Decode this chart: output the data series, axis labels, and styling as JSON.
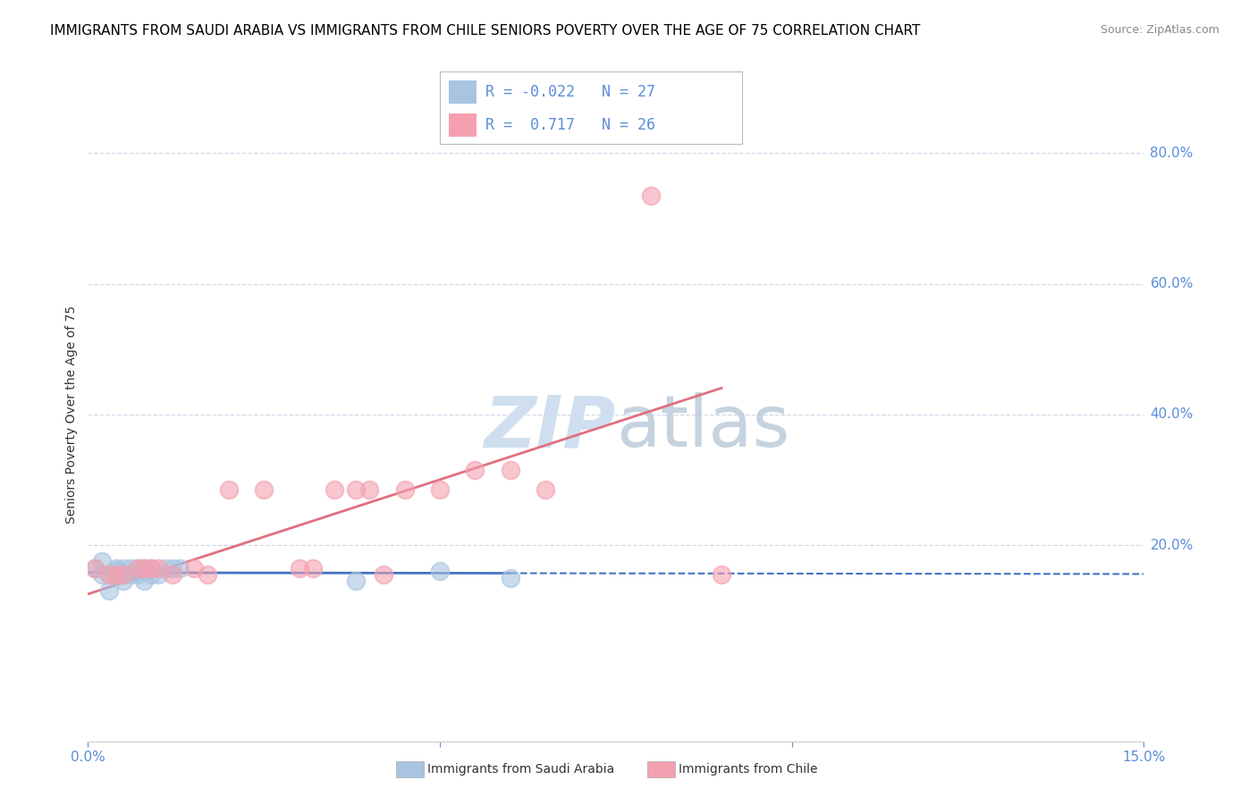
{
  "title": "IMMIGRANTS FROM SAUDI ARABIA VS IMMIGRANTS FROM CHILE SENIORS POVERTY OVER THE AGE OF 75 CORRELATION CHART",
  "source": "Source: ZipAtlas.com",
  "ylabel": "Seniors Poverty Over the Age of 75",
  "xlim": [
    0.0,
    0.15
  ],
  "ylim": [
    -0.1,
    0.9
  ],
  "xticks": [
    0.0,
    0.05,
    0.1,
    0.15
  ],
  "xticklabels": [
    "0.0%",
    "",
    "",
    "15.0%"
  ],
  "ytick_positions": [
    0.2,
    0.4,
    0.6,
    0.8
  ],
  "ytick_labels": [
    "20.0%",
    "40.0%",
    "60.0%",
    "80.0%"
  ],
  "saudi_R": -0.022,
  "saudi_N": 27,
  "chile_R": 0.717,
  "chile_N": 26,
  "saudi_color": "#a8c4e0",
  "chile_color": "#f4a0b0",
  "saudi_line_color": "#4472c4",
  "chile_line_color": "#e07080",
  "watermark_color": "#d0dff0",
  "legend_label_saudi": "Immigrants from Saudi Arabia",
  "legend_label_chile": "Immigrants from Chile",
  "saudi_x": [
    0.001,
    0.002,
    0.002,
    0.003,
    0.003,
    0.004,
    0.004,
    0.004,
    0.005,
    0.005,
    0.005,
    0.006,
    0.006,
    0.007,
    0.007,
    0.008,
    0.008,
    0.008,
    0.009,
    0.009,
    0.01,
    0.011,
    0.012,
    0.013,
    0.038,
    0.05,
    0.06
  ],
  "saudi_y": [
    0.165,
    0.175,
    0.155,
    0.13,
    0.155,
    0.16,
    0.155,
    0.165,
    0.145,
    0.155,
    0.165,
    0.155,
    0.165,
    0.155,
    0.165,
    0.16,
    0.145,
    0.165,
    0.155,
    0.165,
    0.155,
    0.165,
    0.165,
    0.165,
    0.145,
    0.16,
    0.15
  ],
  "chile_x": [
    0.001,
    0.003,
    0.004,
    0.005,
    0.007,
    0.008,
    0.009,
    0.01,
    0.012,
    0.015,
    0.017,
    0.02,
    0.025,
    0.03,
    0.032,
    0.035,
    0.038,
    0.04,
    0.042,
    0.045,
    0.05,
    0.055,
    0.06,
    0.065,
    0.08,
    0.09
  ],
  "chile_y": [
    0.165,
    0.155,
    0.155,
    0.155,
    0.165,
    0.165,
    0.165,
    0.165,
    0.155,
    0.165,
    0.155,
    0.285,
    0.285,
    0.165,
    0.165,
    0.285,
    0.285,
    0.285,
    0.155,
    0.285,
    0.285,
    0.315,
    0.315,
    0.285,
    0.735,
    0.155
  ],
  "title_fontsize": 11,
  "axis_label_fontsize": 10,
  "tick_fontsize": 11,
  "tick_color": "#5b8dd9"
}
